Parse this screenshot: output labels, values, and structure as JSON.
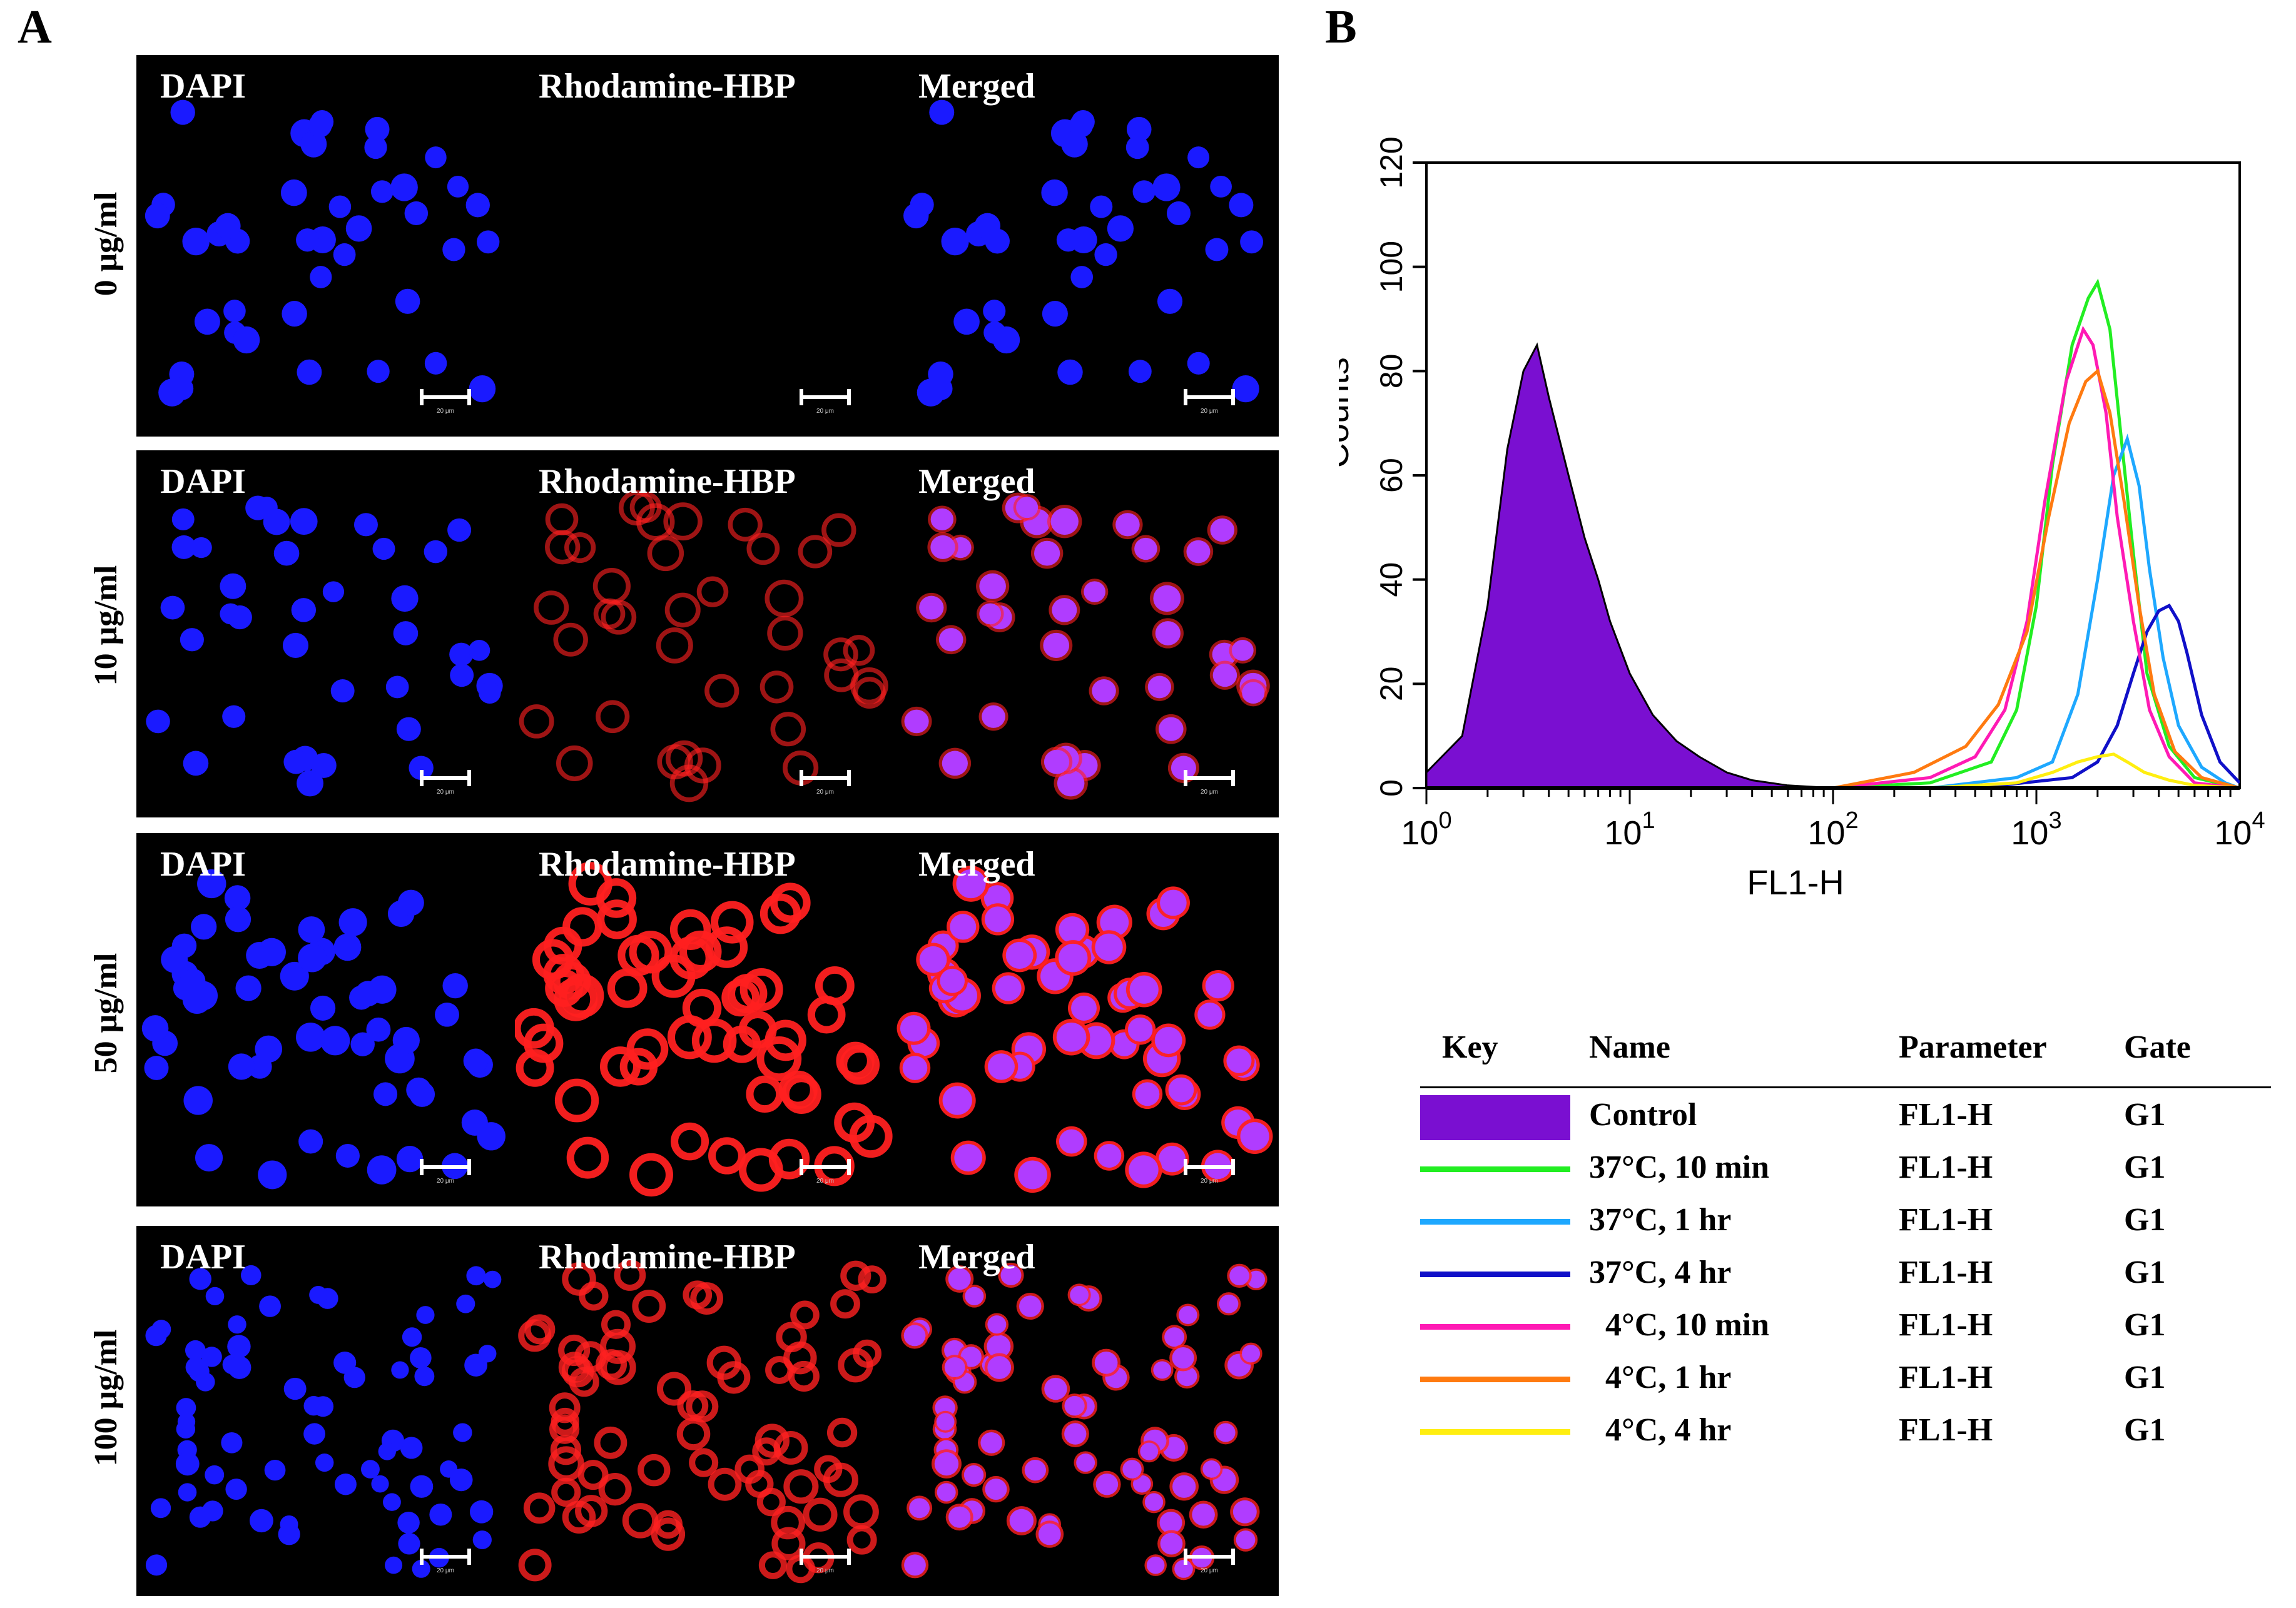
{
  "panel_a": {
    "letter": "A",
    "column_labels": [
      "DAPI",
      "Rhodamine-HBP",
      "Merged"
    ],
    "rows": [
      {
        "label": "0 μg/ml",
        "red_level": 0
      },
      {
        "label": "10 μg/ml",
        "red_level": 0.45
      },
      {
        "label": "50 μg/ml",
        "red_level": 1.0
      },
      {
        "label": "100 μg/ml",
        "red_level": 0.75
      }
    ],
    "scalebar_text": "20 μm",
    "colors": {
      "dapi": "#1a1aff",
      "rhodamine": "#ff2020",
      "merged": "#b03cff"
    }
  },
  "panel_b": {
    "letter": "B",
    "legend": {
      "headers": {
        "key": "Key",
        "name": "Name",
        "parameter": "Parameter",
        "gate": "Gate"
      },
      "rows": [
        {
          "name": "Control",
          "parameter": "FL1-H",
          "gate": "G1",
          "color": "#7a0fd1",
          "style": "fill"
        },
        {
          "name": "37°C, 10 min",
          "parameter": "FL1-H",
          "gate": "G1",
          "color": "#22ee22",
          "style": "line"
        },
        {
          "name": "37°C, 1 hr",
          "parameter": "FL1-H",
          "gate": "G1",
          "color": "#1ea8ff",
          "style": "line"
        },
        {
          "name": "37°C, 4 hr",
          "parameter": "FL1-H",
          "gate": "G1",
          "color": "#1010c8",
          "style": "line"
        },
        {
          "name": "  4°C, 10 min",
          "parameter": "FL1-H",
          "gate": "G1",
          "color": "#ff1ab4",
          "style": "line"
        },
        {
          "name": "  4°C, 1 hr",
          "parameter": "FL1-H",
          "gate": "G1",
          "color": "#ff7a10",
          "style": "line"
        },
        {
          "name": "  4°C, 4 hr",
          "parameter": "FL1-H",
          "gate": "G1",
          "color": "#ffee10",
          "style": "line"
        }
      ]
    }
  },
  "chart_data": {
    "type": "line",
    "xlabel": "FL1-H",
    "ylabel": "Counts",
    "xscale": "log",
    "xlim": [
      1,
      10000
    ],
    "ylim": [
      0,
      120
    ],
    "yticks": [
      0,
      20,
      40,
      60,
      80,
      100,
      120
    ],
    "xticks": [
      1,
      10,
      100,
      1000,
      10000
    ],
    "xtick_labels": [
      {
        "base": "10",
        "exp": "0"
      },
      {
        "base": "10",
        "exp": "1"
      },
      {
        "base": "10",
        "exp": "2"
      },
      {
        "base": "10",
        "exp": "3"
      },
      {
        "base": "10",
        "exp": "4"
      }
    ],
    "series": [
      {
        "name": "Control",
        "color": "#7a0fd1",
        "style": "fill",
        "x": [
          1,
          1.5,
          2,
          2.5,
          3,
          3.5,
          4,
          5,
          6,
          7,
          8,
          10,
          13,
          17,
          22,
          30,
          40,
          60,
          100,
          10000
        ],
        "y": [
          3,
          10,
          35,
          65,
          80,
          85,
          75,
          60,
          48,
          40,
          32,
          22,
          14,
          9,
          6,
          3,
          1.5,
          0.5,
          0,
          0
        ]
      },
      {
        "name": "37°C, 10 min",
        "color": "#22ee22",
        "style": "line",
        "x": [
          100,
          300,
          600,
          800,
          1000,
          1200,
          1500,
          1800,
          2000,
          2300,
          2600,
          3000,
          3500,
          4500,
          6000,
          10000
        ],
        "y": [
          0,
          1,
          5,
          15,
          35,
          62,
          85,
          94,
          97,
          88,
          68,
          45,
          22,
          8,
          2,
          0
        ]
      },
      {
        "name": "37°C, 1 hr",
        "color": "#1ea8ff",
        "style": "line",
        "x": [
          300,
          800,
          1200,
          1600,
          2000,
          2400,
          2800,
          3200,
          3600,
          4200,
          5000,
          6500,
          8500,
          10000
        ],
        "y": [
          0,
          2,
          5,
          18,
          40,
          60,
          67,
          58,
          42,
          25,
          12,
          4,
          1,
          0
        ]
      },
      {
        "name": "37°C, 4 hr",
        "color": "#1010c8",
        "style": "line",
        "x": [
          500,
          1500,
          2000,
          2500,
          3000,
          3500,
          4000,
          4500,
          5000,
          5500,
          6500,
          8000,
          10000
        ],
        "y": [
          0,
          2,
          5,
          12,
          22,
          30,
          34,
          35,
          32,
          26,
          14,
          5,
          1
        ]
      },
      {
        "name": "4°C, 10 min",
        "color": "#ff1ab4",
        "style": "line",
        "x": [
          100,
          300,
          500,
          700,
          900,
          1100,
          1400,
          1700,
          1900,
          2200,
          2500,
          3000,
          3600,
          4500,
          6000,
          10000
        ],
        "y": [
          0,
          2,
          6,
          15,
          32,
          55,
          78,
          88,
          85,
          72,
          52,
          32,
          15,
          6,
          1,
          0
        ]
      },
      {
        "name": "4°C, 1 hr",
        "color": "#ff7a10",
        "style": "line",
        "x": [
          100,
          250,
          450,
          650,
          900,
          1150,
          1450,
          1750,
          2000,
          2300,
          2700,
          3200,
          3800,
          4800,
          6500,
          10000
        ],
        "y": [
          0,
          3,
          8,
          16,
          30,
          52,
          70,
          78,
          80,
          72,
          55,
          35,
          18,
          7,
          2,
          0
        ]
      },
      {
        "name": "4°C, 4 hr",
        "color": "#ffee10",
        "style": "line",
        "x": [
          1,
          300,
          800,
          1200,
          1600,
          2000,
          2400,
          2800,
          3400,
          4500,
          6000,
          10000
        ],
        "y": [
          0,
          0,
          1,
          3,
          5,
          6,
          6.5,
          5,
          3,
          1.5,
          0.5,
          0
        ]
      }
    ]
  }
}
